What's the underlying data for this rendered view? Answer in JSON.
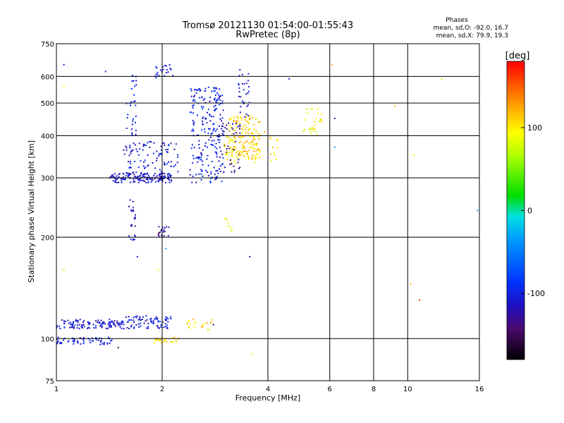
{
  "chart_data": {
    "type": "scatter",
    "title": "Tromsø 20121130 01:54:00-01:55:43",
    "subtitle": "RwPretec (8p)",
    "xlabel": "Frequency [MHz]",
    "ylabel": "Stationary phase Virtual Height [km]",
    "x_scale": "log",
    "y_scale": "log",
    "xlim": [
      1,
      16
    ],
    "ylim": [
      75,
      750
    ],
    "x_ticks": [
      1,
      2,
      4,
      6,
      8,
      10,
      16
    ],
    "x_tick_labels": [
      "1",
      "2",
      "4",
      "6",
      "8",
      "10",
      "16"
    ],
    "y_ticks": [
      75,
      100,
      200,
      300,
      400,
      500,
      600,
      750
    ],
    "y_tick_labels": [
      "75",
      "100",
      "200",
      "300",
      "400",
      "500",
      "600",
      "750"
    ],
    "grid": true,
    "stats": {
      "heading": "Phases",
      "line_o": "mean, sd,O: -92.0, 16.7",
      "line_x": "mean, sd,X:  79.9, 19.3"
    },
    "colorbar": {
      "unit": "[deg]",
      "range": [
        -180,
        180
      ],
      "ticks": [
        100,
        0,
        -100
      ],
      "tick_labels": [
        "100",
        "0",
        "-100"
      ]
    },
    "clusters": [
      {
        "freq": [
          1.0,
          1.55
        ],
        "height": [
          107,
          114
        ],
        "phase": -110,
        "count": 120
      },
      {
        "freq": [
          1.0,
          1.45
        ],
        "height": [
          96,
          101
        ],
        "phase": -100,
        "count": 60
      },
      {
        "freq": [
          1.55,
          2.12
        ],
        "height": [
          107,
          117
        ],
        "phase": -105,
        "count": 80
      },
      {
        "freq": [
          1.9,
          2.25
        ],
        "height": [
          97,
          101
        ],
        "phase": 105,
        "count": 25
      },
      {
        "freq": [
          2.35,
          2.8
        ],
        "height": [
          106,
          114
        ],
        "phase": 110,
        "count": 20
      },
      {
        "freq": [
          1.42,
          2.15
        ],
        "height": [
          290,
          310
        ],
        "phase": -110,
        "count": 140
      },
      {
        "freq": [
          1.55,
          2.22
        ],
        "height": [
          300,
          385
        ],
        "phase": -105,
        "count": 110
      },
      {
        "freq": [
          1.6,
          1.68
        ],
        "height": [
          195,
          260
        ],
        "phase": -115,
        "count": 25
      },
      {
        "freq": [
          1.95,
          2.1
        ],
        "height": [
          198,
          215
        ],
        "phase": -125,
        "count": 20
      },
      {
        "freq": [
          1.58,
          1.7
        ],
        "height": [
          400,
          620
        ],
        "phase": -100,
        "count": 30
      },
      {
        "freq": [
          1.9,
          2.15
        ],
        "height": [
          590,
          650
        ],
        "phase": -100,
        "count": 22
      },
      {
        "freq": [
          2.4,
          3.0
        ],
        "height": [
          290,
          560
        ],
        "phase": -100,
        "count": 220
      },
      {
        "freq": [
          2.9,
          3.35
        ],
        "height": [
          310,
          440
        ],
        "phase": -130,
        "count": 45
      },
      {
        "freq": [
          3.1,
          3.8
        ],
        "height": [
          340,
          460
        ],
        "phase": 110,
        "count": 140
      },
      {
        "freq": [
          3.0,
          3.4
        ],
        "height": [
          330,
          400
        ],
        "phase": 95,
        "count": 30
      },
      {
        "freq": [
          3.3,
          3.55
        ],
        "height": [
          450,
          640
        ],
        "phase": -110,
        "count": 30
      },
      {
        "freq": [
          3.6,
          4.3
        ],
        "height": [
          330,
          420
        ],
        "phase": 100,
        "count": 25
      },
      {
        "freq": [
          5.0,
          5.7
        ],
        "height": [
          400,
          480
        ],
        "phase": 90,
        "count": 30
      },
      {
        "freq": [
          3.0,
          3.2
        ],
        "height": [
          200,
          230
        ],
        "phase": 90,
        "count": 8
      }
    ],
    "outliers": [
      {
        "x": 1.05,
        "y": 650,
        "phase": -110
      },
      {
        "x": 1.05,
        "y": 560,
        "phase": 90
      },
      {
        "x": 1.05,
        "y": 160,
        "phase": 115
      },
      {
        "x": 1.38,
        "y": 620,
        "phase": -105
      },
      {
        "x": 1.5,
        "y": 94,
        "phase": -150
      },
      {
        "x": 1.7,
        "y": 175,
        "phase": -100
      },
      {
        "x": 1.95,
        "y": 160,
        "phase": 90
      },
      {
        "x": 2.05,
        "y": 185,
        "phase": -30
      },
      {
        "x": 2.8,
        "y": 110,
        "phase": -150
      },
      {
        "x": 3.6,
        "y": 90,
        "phase": 100
      },
      {
        "x": 3.55,
        "y": 175,
        "phase": -120
      },
      {
        "x": 4.6,
        "y": 590,
        "phase": -110
      },
      {
        "x": 6.1,
        "y": 650,
        "phase": 120
      },
      {
        "x": 6.2,
        "y": 450,
        "phase": -140
      },
      {
        "x": 6.2,
        "y": 370,
        "phase": -40
      },
      {
        "x": 10.2,
        "y": 145,
        "phase": 120
      },
      {
        "x": 10.4,
        "y": 350,
        "phase": 100
      },
      {
        "x": 10.8,
        "y": 130,
        "phase": 160
      },
      {
        "x": 12.5,
        "y": 590,
        "phase": 60
      },
      {
        "x": 9.2,
        "y": 490,
        "phase": 120
      },
      {
        "x": 15.8,
        "y": 240,
        "phase": -30
      }
    ]
  }
}
